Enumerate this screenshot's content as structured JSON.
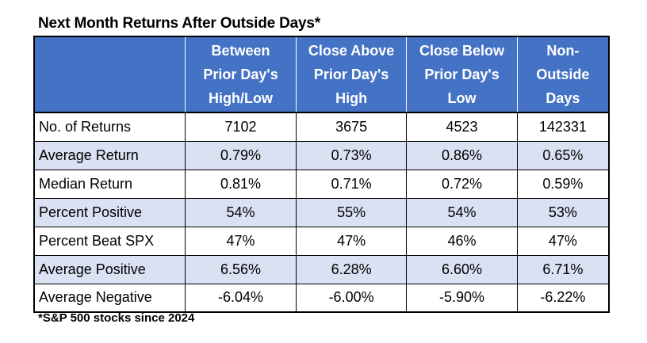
{
  "title": "Next Month Returns After Outside Days*",
  "table": {
    "columns": [
      {
        "lines": [
          ""
        ]
      },
      {
        "lines": [
          "Between",
          "Prior Day's",
          "High/Low"
        ]
      },
      {
        "lines": [
          "Close Above",
          "Prior Day's",
          "High"
        ]
      },
      {
        "lines": [
          "Close Below",
          "Prior Day's",
          "Low"
        ]
      },
      {
        "lines": [
          "Non-",
          "Outside",
          "Days"
        ]
      }
    ],
    "rows": [
      {
        "label": "No. of Returns",
        "values": [
          "7102",
          "3675",
          "4523",
          "142331"
        ]
      },
      {
        "label": "Average Return",
        "values": [
          "0.79%",
          "0.73%",
          "0.86%",
          "0.65%"
        ]
      },
      {
        "label": "Median Return",
        "values": [
          "0.81%",
          "0.71%",
          "0.72%",
          "0.59%"
        ]
      },
      {
        "label": "Percent Positive",
        "values": [
          "54%",
          "55%",
          "54%",
          "53%"
        ]
      },
      {
        "label": "Percent Beat SPX",
        "values": [
          "47%",
          "47%",
          "46%",
          "47%"
        ]
      },
      {
        "label": "Average Positive",
        "values": [
          "6.56%",
          "6.28%",
          "6.60%",
          "6.71%"
        ]
      },
      {
        "label": "Average Negative",
        "values": [
          "-6.04%",
          "-6.00%",
          "-5.90%",
          "-6.22%"
        ]
      }
    ]
  },
  "footnote": "*S&P 500 stocks since 2024",
  "colors": {
    "header_background": "#4472c4",
    "header_text": "#ffffff",
    "banded_row": "#d9e1f2",
    "border": "#000000"
  }
}
